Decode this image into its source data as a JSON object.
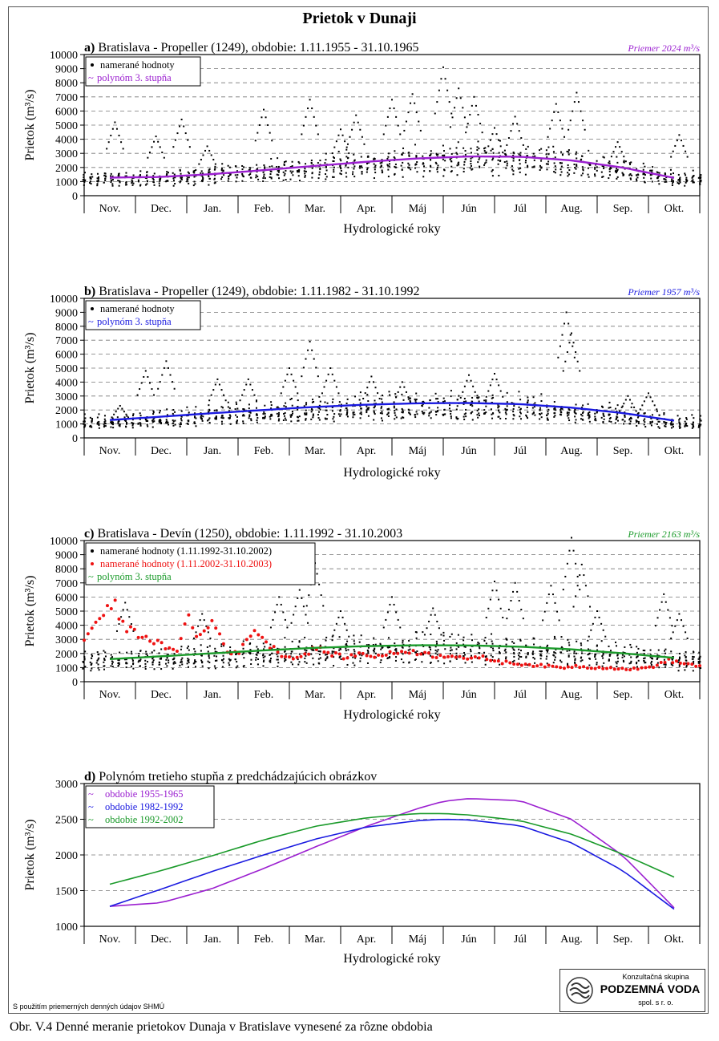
{
  "page": {
    "title": "Prietok v Dunaji",
    "source_note": "S použitím priemerných denných údajov SHMÚ",
    "caption": "Obr. V.4 Denné meranie prietokov Dunaja v Bratislave vynesené za rôzne obdobia"
  },
  "logo": {
    "top": "Konzultačná skupina",
    "name": "PODZEMNÁ VODA",
    "sub": "spol. s r. o."
  },
  "colors": {
    "purple": "#9b1fd0",
    "blue": "#1a1ae0",
    "green": "#1a9a2a",
    "red": "#ee1111",
    "black": "#000000"
  },
  "chart_data": [
    {
      "type": "scatter",
      "label": "a)",
      "title": "Bratislava - Propeller (1249), obdobie: 1.11.1955 - 31.10.1965",
      "mean_label": "Priemer 2024 m³/s",
      "mean_color": "#9b1fd0",
      "xlabel": "Hydrologické roky",
      "ylabel": "Prietok (m³/s)",
      "ylim": [
        0,
        10000
      ],
      "yticks": [
        0,
        1000,
        2000,
        3000,
        4000,
        5000,
        6000,
        7000,
        8000,
        9000,
        10000
      ],
      "categories": [
        "Nov.",
        "Dec.",
        "Jan.",
        "Feb.",
        "Mar.",
        "Apr.",
        "Máj",
        "Jún",
        "Júl",
        "Aug.",
        "Sep.",
        "Okt."
      ],
      "grid": "horizontal dashed",
      "legend": [
        "namerané hodnoty",
        "polynóm 3. stupňa"
      ],
      "series": [
        {
          "name": "namerané hodnoty",
          "kind": "points",
          "color": "#000000",
          "years": 10,
          "peaks": [
            [
              0.6,
              5200
            ],
            [
              1.9,
              5400
            ],
            [
              1.4,
              4200
            ],
            [
              3.5,
              6100
            ],
            [
              4.4,
              6800
            ],
            [
              5.0,
              4700
            ],
            [
              5.3,
              5700
            ],
            [
              6.0,
              6800
            ],
            [
              6.4,
              7200
            ],
            [
              7.0,
              9100
            ],
            [
              7.3,
              7600
            ],
            [
              7.6,
              7000
            ],
            [
              8.4,
              5600
            ],
            [
              9.6,
              7300
            ],
            [
              9.2,
              6500
            ],
            [
              11.6,
              4300
            ],
            [
              2.4,
              3500
            ],
            [
              8.0,
              4800
            ],
            [
              10.4,
              3800
            ]
          ]
        },
        {
          "name": "polynóm 3. stupňa",
          "kind": "line",
          "color": "#9b1fd0",
          "x": [
            0.5,
            1.5,
            2.5,
            3.5,
            4.5,
            5.5,
            6.5,
            7.5,
            8.5,
            9.5,
            10.5,
            11.5
          ],
          "y": [
            1280,
            1330,
            1530,
            1810,
            2110,
            2400,
            2640,
            2780,
            2760,
            2500,
            1990,
            1260
          ]
        }
      ]
    },
    {
      "type": "scatter",
      "label": "b)",
      "title": "Bratislava - Propeller (1249), obdobie: 1.11.1982 - 31.10.1992",
      "mean_label": "Priemer 1957 m³/s",
      "mean_color": "#1a1ae0",
      "xlabel": "Hydrologické roky",
      "ylabel": "Prietok (m³/s)",
      "ylim": [
        0,
        10000
      ],
      "yticks": [
        0,
        1000,
        2000,
        3000,
        4000,
        5000,
        6000,
        7000,
        8000,
        9000,
        10000
      ],
      "categories": [
        "Nov.",
        "Dec.",
        "Jan.",
        "Feb.",
        "Mar.",
        "Apr.",
        "Máj",
        "Jún",
        "Júl",
        "Aug.",
        "Sep.",
        "Okt."
      ],
      "grid": "horizontal dashed",
      "legend": [
        "namerané hodnoty",
        "polynóm 3. stupňa"
      ],
      "series": [
        {
          "name": "namerané hodnoty",
          "kind": "points",
          "color": "#000000",
          "years": 10,
          "peaks": [
            [
              1.6,
              5500
            ],
            [
              1.2,
              4800
            ],
            [
              2.6,
              4200
            ],
            [
              4.0,
              5000
            ],
            [
              4.4,
              6900
            ],
            [
              4.8,
              5000
            ],
            [
              5.6,
              4400
            ],
            [
              6.2,
              4000
            ],
            [
              7.5,
              4500
            ],
            [
              8.0,
              4600
            ],
            [
              9.4,
              9000
            ],
            [
              9.5,
              7500
            ],
            [
              3.2,
              4200
            ],
            [
              10.6,
              3000
            ],
            [
              11.0,
              3200
            ],
            [
              0.7,
              2300
            ]
          ]
        },
        {
          "name": "polynóm 3. stupňa",
          "kind": "line",
          "color": "#1a1ae0",
          "x": [
            0.5,
            1.5,
            2.5,
            3.5,
            4.5,
            5.5,
            6.5,
            7.5,
            8.5,
            9.5,
            10.5,
            11.5
          ],
          "y": [
            1280,
            1520,
            1770,
            2000,
            2220,
            2380,
            2480,
            2500,
            2420,
            2170,
            1780,
            1240
          ]
        }
      ]
    },
    {
      "type": "scatter",
      "label": "c)",
      "title": "Bratislava - Devín (1250), obdobie: 1.11.1992 - 31.10.2003",
      "mean_label": "Priemer 2163 m³/s",
      "mean_color": "#1a9a2a",
      "xlabel": "Hydrologické roky",
      "ylabel": "Prietok (m³/s)",
      "ylim": [
        0,
        10000
      ],
      "yticks": [
        0,
        1000,
        2000,
        3000,
        4000,
        5000,
        6000,
        7000,
        8000,
        9000,
        10000
      ],
      "categories": [
        "Nov.",
        "Dec.",
        "Jan.",
        "Feb.",
        "Mar.",
        "Apr.",
        "Máj",
        "Jún",
        "Júl",
        "Aug.",
        "Sep.",
        "Okt."
      ],
      "grid": "horizontal dashed",
      "legend": [
        "namerané hodnoty (1.11.1992-31.10.2002)",
        "namerané hodnoty (1.11.2002-31.10.2003)",
        "polynóm 3. stupňa"
      ],
      "series": [
        {
          "name": "namerané hodnoty (1.11.1992-31.10.2002)",
          "kind": "points",
          "color": "#000000",
          "years": 10,
          "peaks": [
            [
              0.8,
              5600
            ],
            [
              3.8,
              6000
            ],
            [
              4.5,
              8400
            ],
            [
              4.2,
              6500
            ],
            [
              5.0,
              5000
            ],
            [
              6.0,
              6000
            ],
            [
              6.8,
              5200
            ],
            [
              8.0,
              7100
            ],
            [
              8.4,
              7000
            ],
            [
              9.5,
              10200
            ],
            [
              9.7,
              8300
            ],
            [
              9.1,
              6800
            ],
            [
              11.3,
              6200
            ],
            [
              11.6,
              4800
            ],
            [
              2.3,
              4800
            ],
            [
              10.0,
              5000
            ]
          ]
        },
        {
          "name": "namerané hodnoty (1.11.2002-31.10.2003)",
          "kind": "points",
          "color": "#ee1111",
          "x": [
            0.0,
            0.3,
            0.6,
            0.8,
            1.0,
            1.3,
            1.6,
            1.8,
            2.0,
            2.2,
            2.5,
            2.8,
            3.0,
            3.3,
            3.6,
            3.9,
            4.2,
            4.5,
            4.8,
            5.1,
            5.4,
            5.7,
            6.0,
            6.3,
            6.6,
            6.9,
            7.2,
            7.5,
            7.8,
            8.1,
            8.4,
            8.7,
            9.0,
            9.3,
            9.6,
            9.9,
            10.2,
            10.5,
            10.8,
            11.1,
            11.4,
            11.7,
            12.0
          ],
          "y": [
            3000,
            4600,
            5400,
            3800,
            3500,
            3000,
            2400,
            2000,
            4900,
            3000,
            4300,
            2200,
            1900,
            3800,
            2600,
            1800,
            1700,
            2400,
            2000,
            1700,
            2000,
            1800,
            2000,
            2200,
            2000,
            1800,
            1900,
            1600,
            1700,
            1400,
            1300,
            1200,
            1100,
            1000,
            1100,
            1000,
            1000,
            900,
            900,
            1100,
            1500,
            1300,
            1100
          ]
        },
        {
          "name": "polynóm 3. stupňa",
          "kind": "line",
          "color": "#1a9a2a",
          "x": [
            0.5,
            1.5,
            2.5,
            3.5,
            4.5,
            5.5,
            6.5,
            7.5,
            8.5,
            9.5,
            10.5,
            11.5
          ],
          "y": [
            1600,
            1800,
            2010,
            2220,
            2400,
            2520,
            2580,
            2570,
            2480,
            2290,
            2010,
            1690
          ]
        }
      ]
    },
    {
      "type": "line",
      "label": "d)",
      "title": "Polynóm tretieho stupňa z predchádzajúcich obrázkov",
      "xlabel": "Hydrologické roky",
      "ylabel": "Prietok (m³/s)",
      "ylim": [
        1000,
        3000
      ],
      "yticks": [
        1000,
        1500,
        2000,
        2500,
        3000
      ],
      "categories": [
        "Nov.",
        "Dec.",
        "Jan.",
        "Feb.",
        "Mar.",
        "Apr.",
        "Máj",
        "Jún",
        "Júl",
        "Aug.",
        "Sep.",
        "Okt."
      ],
      "grid": "horizontal dashed",
      "legend": [
        "obdobie 1955-1965",
        "obdobie 1982-1992",
        "obdobie 1992-2002"
      ],
      "series": [
        {
          "name": "obdobie 1955-1965",
          "color": "#9b1fd0",
          "x": [
            0.5,
            1.5,
            2.5,
            3.5,
            4.5,
            5.5,
            6.5,
            7.0,
            7.5,
            8.5,
            9.5,
            10.5,
            11.5
          ],
          "y": [
            1280,
            1330,
            1530,
            1810,
            2110,
            2400,
            2650,
            2750,
            2790,
            2760,
            2500,
            1990,
            1260
          ]
        },
        {
          "name": "obdobie 1982-1992",
          "color": "#1a1ae0",
          "x": [
            0.5,
            1.5,
            2.5,
            3.5,
            4.5,
            5.5,
            6.5,
            7.0,
            7.5,
            8.5,
            9.5,
            10.5,
            11.5
          ],
          "y": [
            1280,
            1520,
            1770,
            2000,
            2220,
            2390,
            2480,
            2500,
            2490,
            2410,
            2170,
            1780,
            1240
          ]
        },
        {
          "name": "obdobie 1992-2002",
          "color": "#1a9a2a",
          "x": [
            0.5,
            1.5,
            2.5,
            3.5,
            4.5,
            5.5,
            6.5,
            7.0,
            7.5,
            8.5,
            9.5,
            10.5,
            11.5
          ],
          "y": [
            1590,
            1780,
            1990,
            2210,
            2400,
            2520,
            2580,
            2580,
            2560,
            2480,
            2290,
            2010,
            1690
          ]
        }
      ]
    }
  ]
}
